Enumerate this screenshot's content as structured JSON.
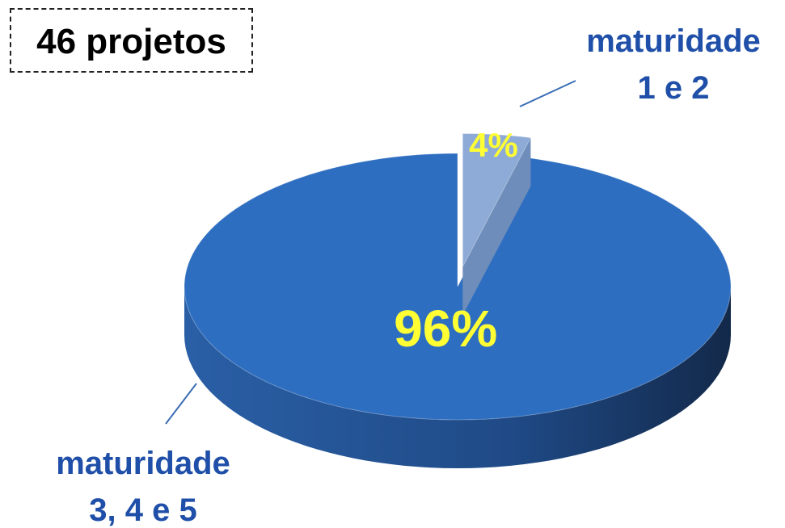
{
  "chart_data": {
    "type": "pie3d",
    "title": "46 projetos",
    "categories": [
      "maturidade 1 e 2",
      "maturidade 3, 4 e 5"
    ],
    "values": [
      4,
      96
    ],
    "value_labels": [
      "4%",
      "96%"
    ],
    "colors": [
      "#8eaad6",
      "#2e6ec0"
    ]
  }
}
